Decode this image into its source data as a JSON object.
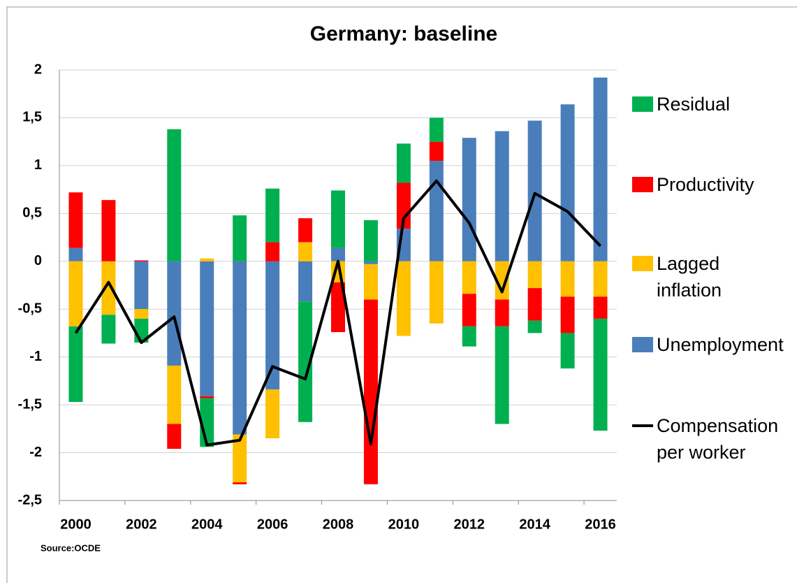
{
  "chart_data": {
    "type": "bar",
    "stacked": true,
    "title": "Germany: baseline",
    "source": "Source:OCDE",
    "categories": [
      "2000",
      null,
      "2002",
      null,
      "2004",
      null,
      "2006",
      null,
      "2008",
      null,
      "2010",
      null,
      "2012",
      null,
      "2014",
      null,
      "2016"
    ],
    "series": [
      {
        "name": "Residual",
        "color": "#00b050",
        "values": [
          -0.79,
          -0.3,
          -0.25,
          1.38,
          -0.51,
          0.48,
          0.56,
          -1.26,
          0.6,
          0.43,
          0.41,
          0.25,
          -0.21,
          -1.02,
          -0.13,
          -0.37,
          -1.17
        ]
      },
      {
        "name": "Productivity",
        "color": "#ff0000",
        "values": [
          0.58,
          0.64,
          0.01,
          -0.26,
          -0.02,
          -0.02,
          0.2,
          0.25,
          -0.52,
          -1.93,
          0.48,
          0.2,
          -0.34,
          -0.28,
          -0.34,
          -0.38,
          -0.23
        ]
      },
      {
        "name": "Lagged inflation",
        "color": "#ffc000",
        "values": [
          -0.68,
          -0.56,
          -0.1,
          -0.61,
          0.03,
          -0.5,
          -0.51,
          0.2,
          -0.22,
          -0.37,
          -0.78,
          -0.65,
          -0.34,
          -0.4,
          -0.28,
          -0.37,
          -0.37
        ]
      },
      {
        "name": "Unemployment",
        "color": "#4a7ebb",
        "values": [
          0.14,
          0,
          -0.5,
          -1.09,
          -1.41,
          -1.81,
          -1.34,
          -0.42,
          0.14,
          -0.03,
          0.34,
          1.05,
          1.29,
          1.36,
          1.47,
          1.64,
          1.92
        ]
      },
      {
        "name": "Compensation per worker",
        "type": "line",
        "color": "#000000",
        "values": [
          -0.75,
          -0.22,
          -0.85,
          -0.58,
          -1.92,
          -1.87,
          -1.1,
          -1.23,
          0.0,
          -1.91,
          0.45,
          0.84,
          0.4,
          -0.32,
          0.71,
          0.52,
          0.16
        ]
      }
    ],
    "ylim": [
      -2.5,
      2
    ],
    "yticks": [
      {
        "value": -2.5,
        "label": "-2,5"
      },
      -2,
      {
        "value": -1.5,
        "label": "-1,5"
      },
      -1,
      {
        "value": -0.5,
        "label": "-0,5"
      },
      0,
      {
        "value": 0.5,
        "label": "0,5"
      },
      1,
      {
        "value": 1.5,
        "label": "1,5"
      },
      2
    ],
    "grid": true,
    "legend": "right"
  }
}
